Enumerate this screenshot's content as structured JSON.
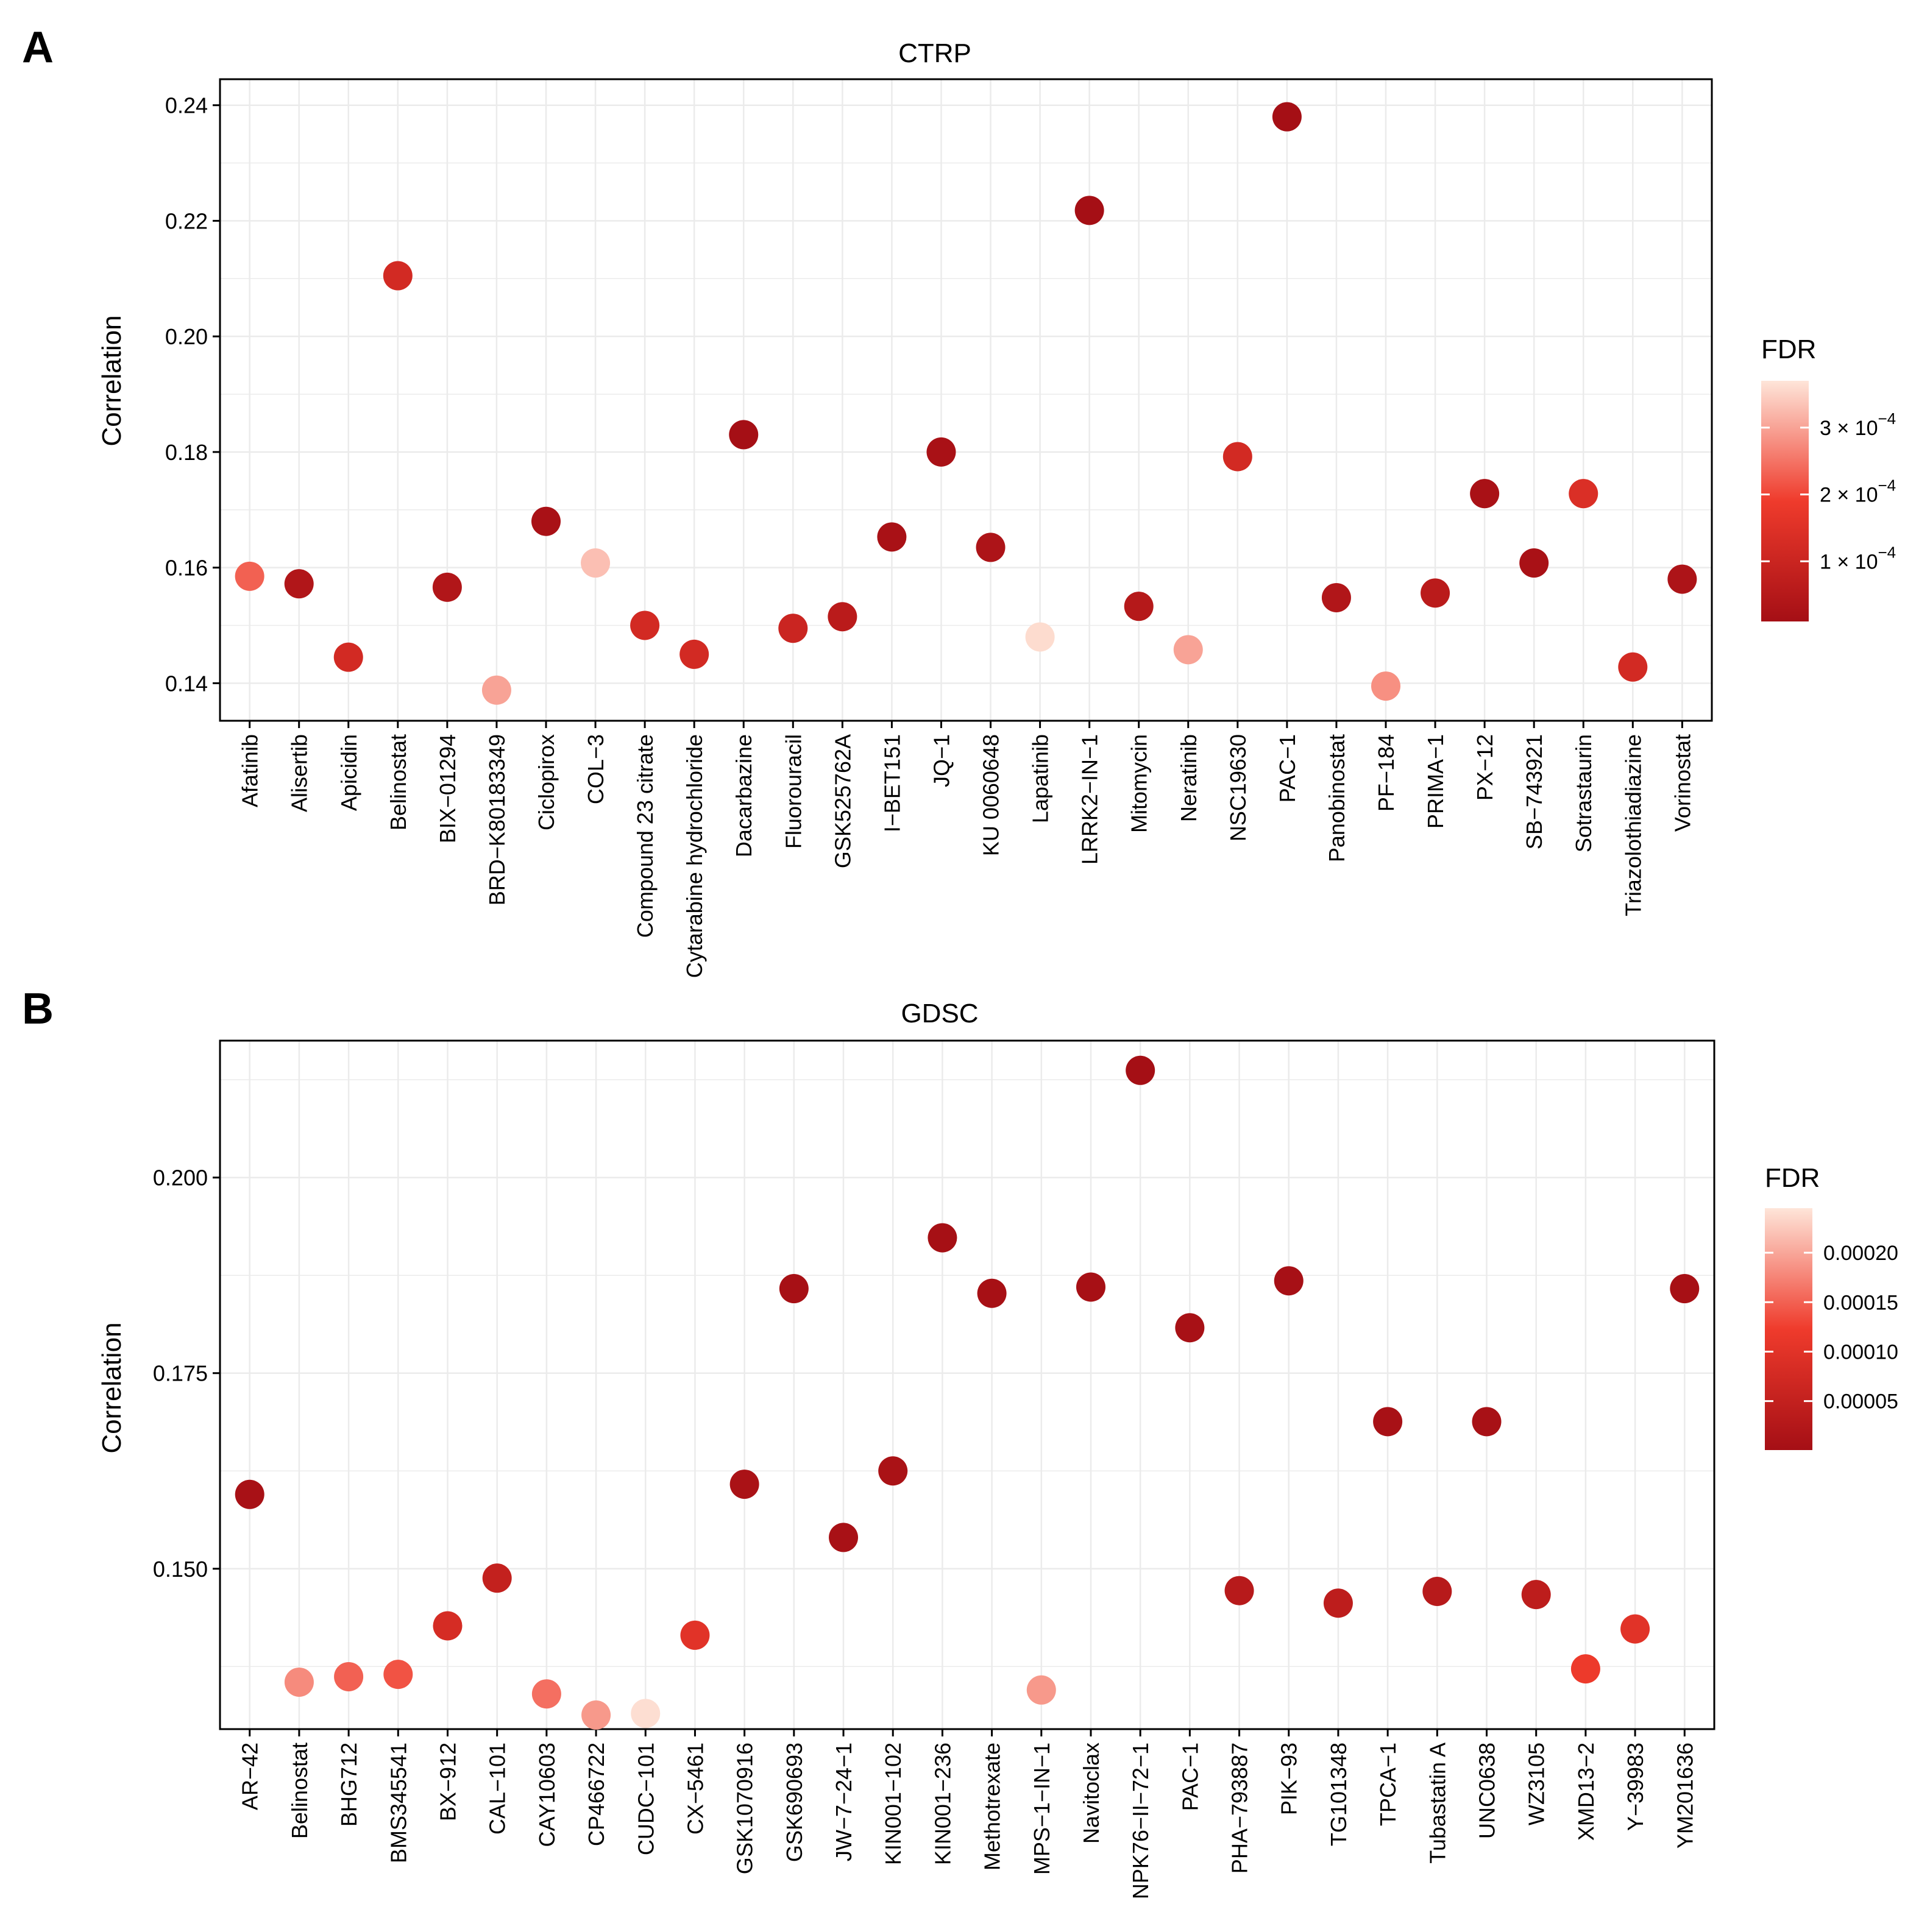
{
  "panels": [
    {
      "letter": "A",
      "title": "CTRP",
      "ylabel": "Correlation",
      "legend_title": "FDR",
      "legend_ticks": [
        {
          "base": "3 × 10",
          "exp": "−4",
          "value": 0.0003
        },
        {
          "base": "2 × 10",
          "exp": "−4",
          "value": 0.0002
        },
        {
          "base": "1 × 10",
          "exp": "−4",
          "value": 0.0001
        }
      ]
    },
    {
      "letter": "B",
      "title": "GDSC",
      "ylabel": "Correlation",
      "legend_title": "FDR",
      "legend_ticks": [
        {
          "base": "0.00020",
          "exp": "",
          "value": 0.0002
        },
        {
          "base": "0.00015",
          "exp": "",
          "value": 0.00015
        },
        {
          "base": "0.00010",
          "exp": "",
          "value": 0.0001
        },
        {
          "base": "0.00005",
          "exp": "",
          "value": 5e-05
        }
      ]
    }
  ],
  "colors": {
    "fdr_low": "#a50f15",
    "fdr_mid": "#ef3b2c",
    "fdr_high": "#fee5d9",
    "grid": "#ebebeb",
    "axis": "#000000"
  },
  "chart_data": [
    {
      "type": "scatter",
      "title": "CTRP",
      "xlabel": "",
      "ylabel": "Correlation",
      "ylim": [
        0.1335,
        0.2445
      ],
      "yticks": [
        0.14,
        0.16,
        0.18,
        0.2,
        0.22,
        0.24
      ],
      "ytick_labels": [
        "0.14",
        "0.16",
        "0.18",
        "0.20",
        "0.22",
        "0.24"
      ],
      "fdr_range": [
        1e-05,
        0.00037
      ],
      "categories": [
        "Afatinib",
        "Alisertib",
        "Apicidin",
        "Belinostat",
        "BIX−01294",
        "BRD−K80183349",
        "Ciclopirox",
        "COL−3",
        "Compound 23 citrate",
        "Cytarabine hydrochloride",
        "Dacarbazine",
        "Fluorouracil",
        "GSK525762A",
        "I−BET151",
        "JQ−1",
        "KU 0060648",
        "Lapatinib",
        "LRRK2−IN−1",
        "Mitomycin",
        "Neratinib",
        "NSC19630",
        "PAC−1",
        "Panobinostat",
        "PF−184",
        "PRIMA−1",
        "PX−12",
        "SB−743921",
        "Sotrastaurin",
        "Triazolothiadiazine",
        "Vorinostat"
      ],
      "values": [
        0.1585,
        0.1572,
        0.1445,
        0.2105,
        0.1566,
        0.1388,
        0.168,
        0.1608,
        0.15,
        0.145,
        0.183,
        0.1495,
        0.1515,
        0.1653,
        0.18,
        0.1635,
        0.148,
        0.2218,
        0.1533,
        0.1458,
        0.1792,
        0.238,
        0.1548,
        0.1395,
        0.1556,
        0.1728,
        0.1608,
        0.1728,
        0.1428,
        0.158
      ],
      "fdr": [
        0.00023,
        4e-05,
        0.00012,
        0.00012,
        4e-05,
        0.0003,
        2e-05,
        0.00033,
        0.00012,
        0.00012,
        1e-05,
        0.0001,
        6e-05,
        2e-05,
        2e-05,
        3e-05,
        0.00036,
        1e-05,
        5e-05,
        0.0003,
        0.00012,
        1e-05,
        4e-05,
        0.00028,
        6e-05,
        2e-05,
        2e-05,
        0.00014,
        0.00012,
        3e-05
      ]
    },
    {
      "type": "scatter",
      "title": "GDSC",
      "xlabel": "",
      "ylabel": "Correlation",
      "ylim": [
        0.1295,
        0.2175
      ],
      "yticks": [
        0.15,
        0.175,
        0.2
      ],
      "ytick_labels": [
        "0.150",
        "0.175",
        "0.200"
      ],
      "fdr_range": [
        5e-07,
        0.000245
      ],
      "categories": [
        "AR−42",
        "Belinostat",
        "BHG712",
        "BMS345541",
        "BX−912",
        "CAL−101",
        "CAY10603",
        "CP466722",
        "CUDC−101",
        "CX−5461",
        "GSK1070916",
        "GSK690693",
        "JW−7−24−1",
        "KIN001−102",
        "KIN001−236",
        "Methotrexate",
        "MPS−1−IN−1",
        "Navitoclax",
        "NPK76−II−72−1",
        "PAC−1",
        "PHA−793887",
        "PIK−93",
        "TG101348",
        "TPCA−1",
        "Tubastatin A",
        "UNC0638",
        "WZ3105",
        "XMD13−2",
        "Y−39983",
        "YM201636"
      ],
      "values": [
        0.1595,
        0.1355,
        0.1362,
        0.1365,
        0.1427,
        0.1488,
        0.134,
        0.1313,
        0.1315,
        0.1415,
        0.1608,
        0.1858,
        0.154,
        0.1625,
        0.1923,
        0.1852,
        0.1345,
        0.186,
        0.2137,
        0.1808,
        0.1472,
        0.1868,
        0.1456,
        0.1688,
        0.1471,
        0.1688,
        0.1467,
        0.1372,
        0.1423,
        0.1858
      ],
      "fdr": [
        5e-06,
        0.00018,
        0.00015,
        0.00014,
        8e-05,
        5e-05,
        0.00016,
        0.00019,
        0.00024,
        0.0001,
        8e-06,
        3e-06,
        5e-06,
        8e-06,
        2e-06,
        3e-06,
        0.00019,
        3e-06,
        1e-06,
        5e-06,
        3e-05,
        4e-06,
        4e-05,
        5e-06,
        3e-05,
        5e-06,
        4e-05,
        0.00012,
        0.0001,
        3e-06
      ]
    }
  ]
}
